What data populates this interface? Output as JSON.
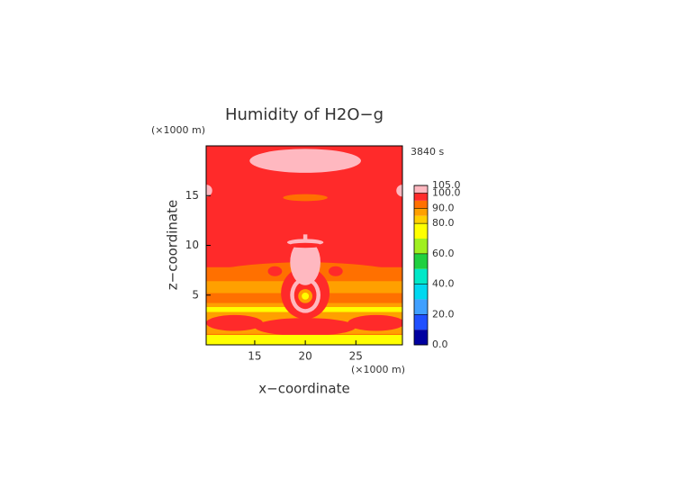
{
  "chart_data": {
    "type": "contour",
    "title": "Humidity of H2O−g",
    "x_label": "x−coordinate",
    "y_label": "z−coordinate",
    "x_unit": "(×1000 m)",
    "y_unit": "(×1000 m)",
    "time_label": "3840 s",
    "xlim": [
      10.2,
      29.6
    ],
    "xticks": [
      15,
      20,
      25
    ],
    "ylim": [
      0,
      20
    ],
    "yticks": [
      5,
      10,
      15
    ],
    "levels": [
      0,
      10,
      20,
      30,
      40,
      50,
      60,
      70,
      80,
      85,
      90,
      95,
      100,
      105
    ],
    "colors": [
      "#0000a0",
      "#2050ff",
      "#40a0ff",
      "#00d8f0",
      "#00e8c8",
      "#20d040",
      "#a0f020",
      "#ffff00",
      "#ffd000",
      "#ffa000",
      "#ff7000",
      "#ff2a2a",
      "#ffb8c0"
    ],
    "colorbar_ticks": [
      {
        "value": 0,
        "label": "0.0"
      },
      {
        "value": 20,
        "label": "20.0"
      },
      {
        "value": 40,
        "label": "40.0"
      },
      {
        "value": 60,
        "label": "60.0"
      },
      {
        "value": 80,
        "label": "80.0"
      },
      {
        "value": 90,
        "label": "90.0"
      },
      {
        "value": 100,
        "label": "100.0"
      },
      {
        "value": 105,
        "label": "105.0"
      }
    ]
  }
}
